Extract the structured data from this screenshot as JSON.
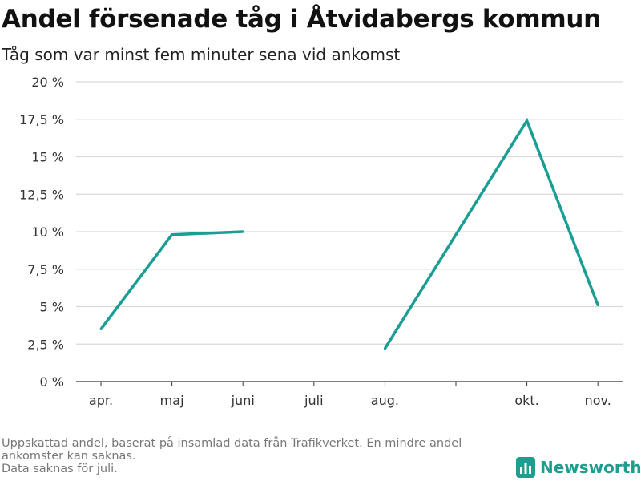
{
  "title": "Andel försenade tåg i Åtvidabergs kommun",
  "subtitle": "Tåg som var minst fem minuter sena vid ankomst",
  "footnote": {
    "line1": "Uppskattad andel, baserat på insamlad data från Trafikverket. En mindre andel",
    "line2": "ankomster kan saknas.",
    "line3": "Data saknas för juli."
  },
  "brand": {
    "name": "Newsworthy",
    "icon": "bar-chart-logo-icon",
    "color": "#1f9d8f"
  },
  "colors": {
    "line": "#1a9e94",
    "grid": "#d9d9d9",
    "axis": "#333333"
  },
  "chart_data": {
    "type": "line",
    "title": "Andel försenade tåg i Åtvidabergs kommun",
    "subtitle": "Tåg som var minst fem minuter sena vid ankomst",
    "categories": [
      "apr.",
      "maj",
      "juni",
      "juli",
      "aug.",
      "",
      "okt.",
      "nov."
    ],
    "tick_marks_at": [
      0,
      1,
      2,
      3,
      4,
      5,
      6,
      7
    ],
    "series": [
      {
        "values": [
          3.5,
          9.8,
          10.0,
          null,
          2.2,
          9.8,
          17.4,
          5.1
        ]
      }
    ],
    "ylim": [
      0,
      20
    ],
    "yticks": [
      0,
      2.5,
      5,
      7.5,
      10,
      12.5,
      15,
      17.5,
      20
    ],
    "ytick_labels": [
      "0 %",
      "2,5 %",
      "5 %",
      "7,5 %",
      "10 %",
      "12,5 %",
      "15 %",
      "17,5 %",
      "20 %"
    ],
    "grid": true,
    "legend": "none"
  }
}
